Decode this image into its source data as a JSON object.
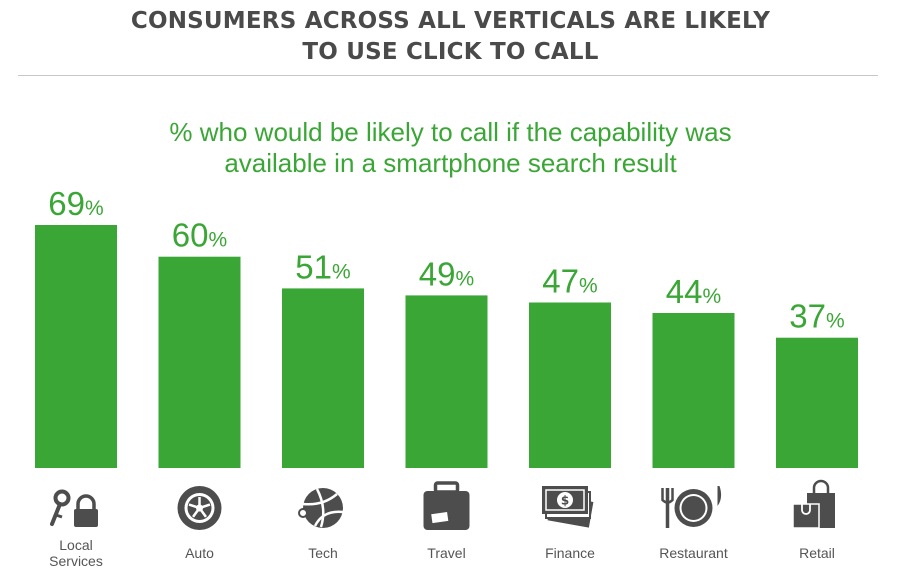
{
  "header": {
    "title_line1": "CONSUMERS ACROSS ALL VERTICALS ARE LIKELY",
    "title_line2": "TO USE CLICK TO CALL",
    "subtitle_line1": "% who would be likely to call if the capability was",
    "subtitle_line2": "available in a smartphone search result"
  },
  "colors": {
    "bar": "#3aa635",
    "label": "#3aa635",
    "icon": "#4d4d4d",
    "title": "#4a4a4a"
  },
  "chart_data": {
    "type": "bar",
    "title": "CONSUMERS ACROSS ALL VERTICALS ARE LIKELY TO USE CLICK TO CALL",
    "subtitle": "% who would be likely to call if the capability was available in a smartphone search result",
    "categories": [
      {
        "lines": [
          "Local",
          "Services"
        ],
        "icon": "key-lock-icon"
      },
      {
        "lines": [
          "Auto"
        ],
        "icon": "tire-icon"
      },
      {
        "lines": [
          "Tech"
        ],
        "icon": "tech-globe-icon"
      },
      {
        "lines": [
          "Travel"
        ],
        "icon": "suitcase-icon"
      },
      {
        "lines": [
          "Finance"
        ],
        "icon": "money-icon"
      },
      {
        "lines": [
          "Restaurant"
        ],
        "icon": "plate-cutlery-icon"
      },
      {
        "lines": [
          "Retail"
        ],
        "icon": "shopping-bag-icon"
      }
    ],
    "values": [
      69,
      60,
      51,
      49,
      47,
      44,
      37
    ],
    "value_suffix": "%",
    "ylim": [
      0,
      69
    ],
    "grid": false,
    "legend": "none"
  }
}
